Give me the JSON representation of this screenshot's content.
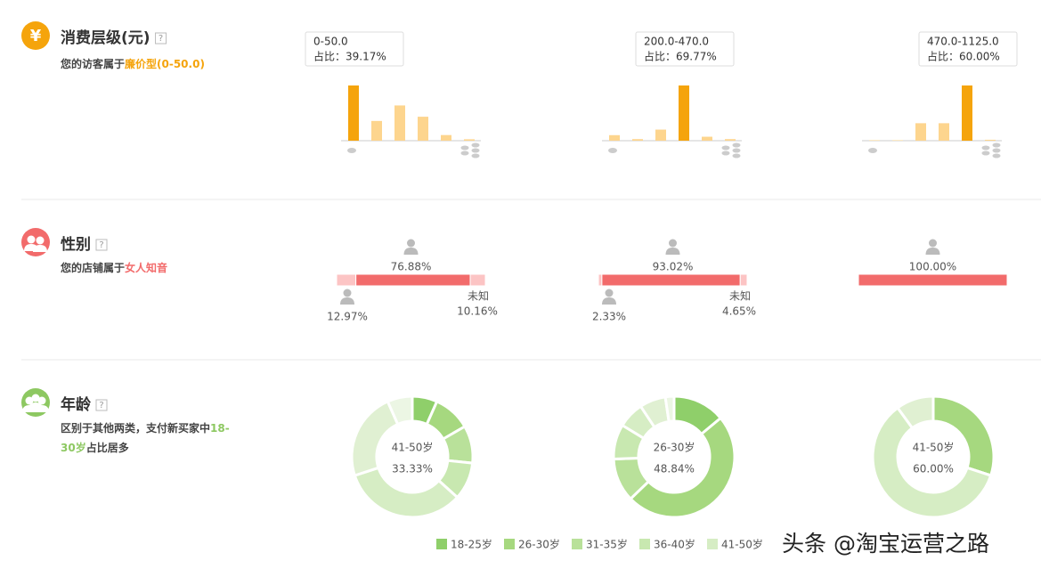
{
  "spending": {
    "title": "消费层级(元)",
    "help": "?",
    "icon": "¥",
    "note_prefix": "您的访客属于",
    "note_highlight": "廉价型(0-50.0)",
    "color": "#f5a40c",
    "light_color": "#fdd58e",
    "charts": [
      {
        "type": "bar",
        "values": [
          39.17,
          14,
          25,
          17,
          4,
          1
        ],
        "highlight": 0,
        "tooltip": {
          "range": "0-50.0",
          "label": "占比：39.17%"
        }
      },
      {
        "type": "bar",
        "values": [
          7,
          2,
          14,
          69.77,
          5,
          2
        ],
        "highlight": 3,
        "tooltip": {
          "range": "200.0-470.0",
          "label": "占比：69.77%"
        }
      },
      {
        "type": "bar",
        "values": [
          0.5,
          0.5,
          19,
          19,
          60,
          1
        ],
        "highlight": 4,
        "tooltip": {
          "range": "470.0-1125.0",
          "label": "占比：60.00%"
        }
      }
    ]
  },
  "gender": {
    "title": "性别",
    "help": "?",
    "note_prefix": "您的店铺属于",
    "note_highlight": "女人知音",
    "color": "#f26b6b",
    "light_color": "#fcc4c4",
    "charts": [
      {
        "type": "stacked-bar",
        "male": {
          "value": 12.97,
          "label": "12.97%"
        },
        "female": {
          "value": 76.88,
          "label": "76.88%"
        },
        "unknown": {
          "name": "未知",
          "value": 10.16,
          "label": "10.16%"
        }
      },
      {
        "type": "stacked-bar",
        "male": {
          "value": 2.33,
          "label": "2.33%"
        },
        "female": {
          "value": 93.02,
          "label": "93.02%"
        },
        "unknown": {
          "name": "未知",
          "value": 4.65,
          "label": "4.65%"
        }
      },
      {
        "type": "stacked-bar",
        "female": {
          "value": 100.0,
          "label": "100.00%"
        }
      }
    ]
  },
  "age": {
    "title": "年龄",
    "help": "?",
    "note_prefix": "区别于其他两类，支付新买家中",
    "note_highlight": "18-30岁",
    "note_suffix": "占比居多",
    "color": "#8dc861",
    "categories": [
      "18-25岁",
      "26-30岁",
      "31-35岁",
      "36-40岁",
      "41-50岁",
      null,
      null
    ],
    "colors": [
      "#8fcf6a",
      "#a6d87f",
      "#b9e19a",
      "#c8e8b0",
      "#d6edc4",
      "#e0f0d2",
      "#ecf6e4"
    ],
    "charts": [
      {
        "type": "donut",
        "values": [
          6.67,
          10,
          10,
          10,
          33.33,
          23.33,
          6.67
        ],
        "center": {
          "name": "41-50岁",
          "label": "33.33%"
        }
      },
      {
        "type": "donut",
        "values": [
          13.95,
          48.84,
          11.63,
          9.3,
          6.98,
          6.98,
          2.33
        ],
        "center": {
          "name": "26-30岁",
          "label": "48.84%"
        }
      },
      {
        "type": "donut",
        "values": [
          0,
          30,
          0,
          0,
          60,
          10,
          0
        ],
        "center": {
          "name": "41-50岁",
          "label": "60.00%"
        }
      }
    ]
  },
  "watermark": "头条 @淘宝运营之路"
}
